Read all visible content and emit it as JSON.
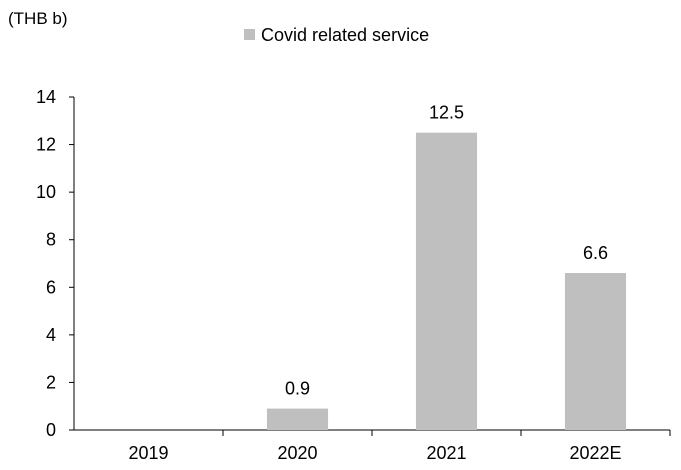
{
  "chart_data": {
    "type": "bar",
    "unit_label": "(THB b)",
    "legend": {
      "position": "top",
      "entries": [
        "Covid related service"
      ]
    },
    "categories": [
      "2019",
      "2020",
      "2021",
      "2022E"
    ],
    "series": [
      {
        "name": "Covid related service",
        "values": [
          0,
          0.9,
          12.5,
          6.6
        ],
        "data_labels": [
          "",
          "0.9",
          "12.5",
          "6.6"
        ],
        "color": "#bfbfbf"
      }
    ],
    "ylim": [
      0,
      14
    ],
    "yticks": [
      0,
      2,
      4,
      6,
      8,
      10,
      12,
      14
    ],
    "ytick_labels": [
      "0",
      "2",
      "4",
      "6",
      "8",
      "10",
      "12",
      "14"
    ],
    "grid": false
  }
}
